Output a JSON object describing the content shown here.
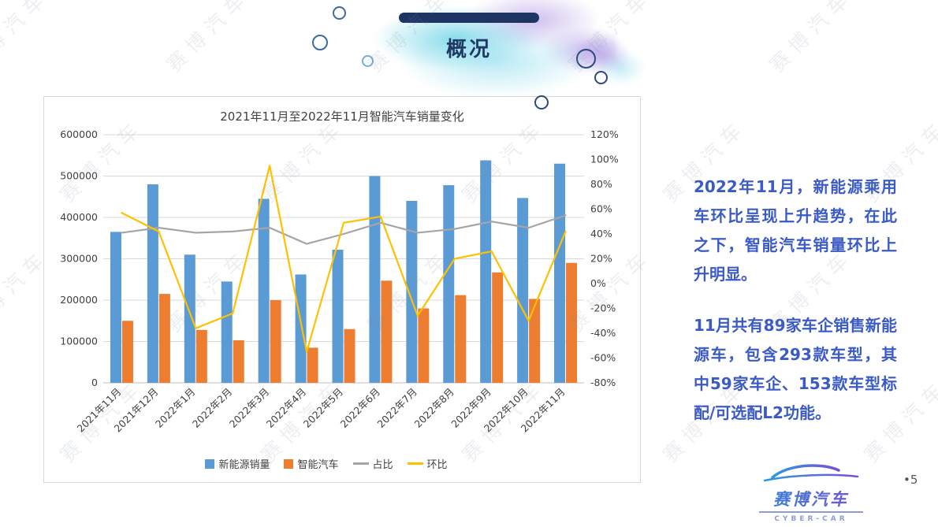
{
  "slide": {
    "title": "概况",
    "page_number": "•5",
    "watermark_text": "赛博汽车"
  },
  "chart_data": {
    "type": "combo-bar-line",
    "title": "2021年11月至2022年11月智能汽车销量变化",
    "categories": [
      "2021年11月",
      "2021年12月",
      "2022年1月",
      "2022年2月",
      "2022年3月",
      "2022年4月",
      "2022年5月",
      "2022年6月",
      "2022年7月",
      "2022年8月",
      "2022年9月",
      "2022年10月",
      "2022年11月"
    ],
    "series": [
      {
        "name": "新能源销量",
        "type": "bar",
        "axis": "left",
        "color": "#5B9BD5",
        "values": [
          365000,
          480000,
          310000,
          245000,
          445000,
          262000,
          322000,
          500000,
          440000,
          478000,
          538000,
          447000,
          530000
        ]
      },
      {
        "name": "智能汽车",
        "type": "bar",
        "axis": "left",
        "color": "#ED7D31",
        "values": [
          150000,
          215000,
          128000,
          103000,
          200000,
          85000,
          130000,
          247000,
          180000,
          212000,
          267000,
          203000,
          290000
        ]
      },
      {
        "name": "占比",
        "type": "line",
        "axis": "right",
        "color": "#A5A5A5",
        "values": [
          41,
          45,
          41,
          42,
          45,
          32,
          40,
          49,
          41,
          44,
          50,
          45,
          55
        ]
      },
      {
        "name": "环比",
        "type": "line",
        "axis": "right",
        "color": "#FFC000",
        "values": [
          57,
          42,
          -36,
          -24,
          95,
          -55,
          49,
          54,
          -26,
          20,
          26,
          -30,
          42
        ]
      }
    ],
    "left_axis": {
      "min": 0,
      "max": 600000,
      "step": 100000,
      "ticks": [
        "0",
        "100000",
        "200000",
        "300000",
        "400000",
        "500000",
        "600000"
      ]
    },
    "right_axis": {
      "min": -80,
      "max": 120,
      "step": 20,
      "unit": "%",
      "ticks": [
        "-80%",
        "-60%",
        "-40%",
        "-20%",
        "0%",
        "20%",
        "40%",
        "60%",
        "80%",
        "100%",
        "120%"
      ]
    },
    "legend_position": "bottom",
    "grid": "horizontal"
  },
  "side_text": {
    "para1": "2022年11月，新能源乘用车环比呈现上升趋势，在此之下，智能汽车销量环比上升明显。",
    "para2": "11月共有89家车企销售新能源车，包含293款车型，其中59家车企、153款车型标配/可选配L2功能。"
  },
  "logo": {
    "name": "赛博汽车",
    "subtitle": "CYBER-CAR"
  }
}
